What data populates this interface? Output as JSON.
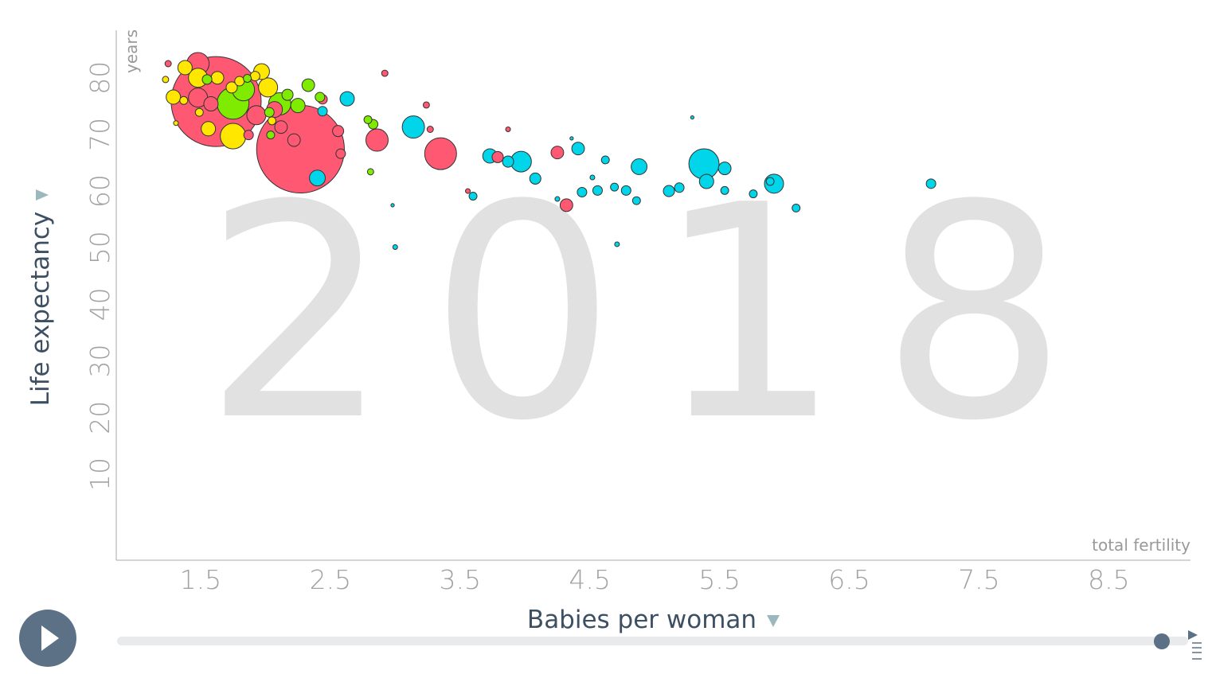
{
  "chart_data": {
    "type": "scatter",
    "x_label": "Babies per woman",
    "y_label": "Life expectancy",
    "x_unit": "total fertility",
    "y_unit": "years",
    "year_label": "2018",
    "xlim": [
      0.85,
      9.13
    ],
    "ylim": [
      -5.2,
      88.4
    ],
    "xticks": [
      1.5,
      2.5,
      3.5,
      4.5,
      5.5,
      6.5,
      7.5,
      8.5
    ],
    "yticks": [
      10,
      20,
      30,
      40,
      50,
      60,
      70,
      80
    ],
    "series": [
      {
        "color": "#ff5872",
        "x": [
          1.62,
          2.27,
          1.48,
          1.48,
          3.35,
          2.86,
          4.32,
          4.25,
          3.79,
          2.92,
          3.24,
          3.27,
          3.56,
          3.87,
          1.25,
          2.56,
          2.58,
          2.44,
          2.22,
          1.93,
          1.87,
          2.07,
          1.58,
          2.12
        ],
        "y": [
          75.8,
          67.4,
          82.5,
          76.5,
          66.6,
          69.0,
          57.5,
          66.8,
          66.0,
          80.8,
          75.2,
          70.9,
          60.0,
          70.9,
          82.5,
          70.6,
          66.6,
          76.2,
          69.0,
          73.4,
          69.9,
          74.4,
          75.4,
          71.3
        ],
        "sizes": [
          1420,
          1350,
          87,
          64,
          178,
          87,
          28,
          28,
          22,
          7,
          7,
          7,
          4,
          4,
          7,
          22,
          16,
          16,
          28,
          64,
          16,
          44,
          36,
          28
        ]
      },
      {
        "color": "#ffe700",
        "x": [
          1.38,
          1.48,
          1.97,
          2.02,
          1.29,
          1.75,
          1.56,
          1.23,
          1.31,
          1.63,
          1.74,
          1.8,
          1.55,
          1.37,
          1.49,
          1.92,
          2.05
        ],
        "y": [
          81.8,
          80.0,
          81.1,
          78.3,
          76.6,
          69.7,
          71.0,
          79.7,
          72.0,
          80.0,
          78.3,
          79.4,
          79.7,
          76.0,
          73.9,
          80.3,
          72.4
        ],
        "sizes": [
          36,
          64,
          44,
          64,
          36,
          114,
          36,
          7,
          4,
          28,
          22,
          16,
          16,
          11,
          11,
          16,
          11
        ]
      },
      {
        "color": "#7feb00",
        "x": [
          1.75,
          1.83,
          2.11,
          2.33,
          2.25,
          2.42,
          2.79,
          2.81,
          2.83,
          1.55,
          1.86,
          2.04,
          2.03,
          2.17
        ],
        "y": [
          75.5,
          77.9,
          75.4,
          78.7,
          75.1,
          76.6,
          72.6,
          63.4,
          71.8,
          79.7,
          79.9,
          69.9,
          73.9,
          77.0
        ],
        "sizes": [
          178,
          87,
          87,
          28,
          36,
          16,
          11,
          7,
          16,
          16,
          11,
          11,
          16,
          22
        ]
      },
      {
        "color": "#00d5e9",
        "x": [
          5.38,
          3.14,
          3.97,
          5.92,
          2.63,
          2.4,
          4.88,
          4.41,
          5.4,
          5.54,
          7.13,
          3.73,
          3.87,
          4.08,
          4.44,
          4.56,
          4.69,
          4.78,
          4.86,
          5.11,
          5.19,
          5.54,
          5.76,
          6.09,
          5.89,
          4.62,
          3.6,
          4.71,
          3.0,
          2.98,
          4.36,
          4.52,
          4.25,
          5.29,
          2.44
        ],
        "y": [
          64.8,
          71.3,
          65.2,
          61.3,
          76.3,
          62.3,
          64.3,
          67.5,
          61.7,
          64.0,
          61.3,
          66.2,
          65.2,
          62.2,
          59.8,
          60.1,
          60.7,
          60.1,
          58.3,
          60.0,
          60.6,
          60.1,
          59.5,
          57.0,
          61.7,
          65.5,
          59.1,
          50.6,
          50.1,
          57.5,
          69.3,
          62.4,
          58.6,
          73.0,
          74.1
        ],
        "sizes": [
          160,
          87,
          75,
          64,
          36,
          44,
          44,
          28,
          36,
          28,
          16,
          36,
          22,
          22,
          16,
          16,
          11,
          16,
          11,
          22,
          16,
          11,
          11,
          11,
          11,
          11,
          11,
          4,
          4,
          2,
          2,
          4,
          4,
          2,
          16
        ]
      }
    ]
  }
}
